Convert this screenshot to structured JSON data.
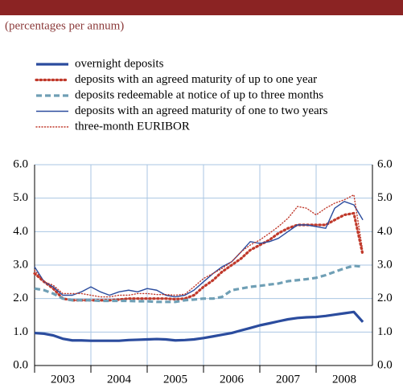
{
  "chart_data": {
    "type": "line",
    "subtitle": "(percentages per annum)",
    "x": [
      2003.0,
      2003.17,
      2003.33,
      2003.5,
      2003.67,
      2003.83,
      2004.0,
      2004.17,
      2004.33,
      2004.5,
      2004.67,
      2004.83,
      2005.0,
      2005.17,
      2005.33,
      2005.5,
      2005.67,
      2005.83,
      2006.0,
      2006.17,
      2006.33,
      2006.5,
      2006.67,
      2006.83,
      2007.0,
      2007.17,
      2007.33,
      2007.5,
      2007.67,
      2007.83,
      2008.0,
      2008.17,
      2008.33,
      2008.5,
      2008.67,
      2008.83
    ],
    "xlim": [
      2003,
      2009
    ],
    "xticks": [
      {
        "value": 2003,
        "label": "2003"
      },
      {
        "value": 2004,
        "label": "2004"
      },
      {
        "value": 2005,
        "label": "2005"
      },
      {
        "value": 2006,
        "label": "2006"
      },
      {
        "value": 2007,
        "label": "2007"
      },
      {
        "value": 2008,
        "label": "2008"
      }
    ],
    "ylim": [
      0,
      6
    ],
    "yticks": [
      {
        "value": 0,
        "label": "0.0"
      },
      {
        "value": 1,
        "label": "1.0"
      },
      {
        "value": 2,
        "label": "2.0"
      },
      {
        "value": 3,
        "label": "3.0"
      },
      {
        "value": 4,
        "label": "4.0"
      },
      {
        "value": 5,
        "label": "5.0"
      },
      {
        "value": 6,
        "label": "6.0"
      }
    ],
    "y2lim": [
      0,
      6
    ],
    "y2ticks": [
      {
        "value": 0,
        "label": "0.0"
      },
      {
        "value": 1,
        "label": "1.0"
      },
      {
        "value": 2,
        "label": "2.0"
      },
      {
        "value": 3,
        "label": "3.0"
      },
      {
        "value": 4,
        "label": "4.0"
      },
      {
        "value": 5,
        "label": "5.0"
      },
      {
        "value": 6,
        "label": "6.0"
      }
    ],
    "grid": true,
    "series": [
      {
        "name": "overnight deposits",
        "color": "#2b4c9e",
        "weight": "thick",
        "dash": "solid",
        "values": [
          0.97,
          0.95,
          0.9,
          0.8,
          0.75,
          0.75,
          0.74,
          0.74,
          0.74,
          0.74,
          0.76,
          0.77,
          0.78,
          0.79,
          0.78,
          0.75,
          0.76,
          0.78,
          0.82,
          0.87,
          0.92,
          0.97,
          1.05,
          1.12,
          1.2,
          1.26,
          1.32,
          1.38,
          1.42,
          1.44,
          1.45,
          1.48,
          1.52,
          1.56,
          1.6,
          1.3
        ]
      },
      {
        "name": "deposits with an agreed maturity of up to one year",
        "color": "#c0392b",
        "weight": "thick",
        "dash": "dotted",
        "values": [
          2.75,
          2.5,
          2.3,
          2.0,
          1.95,
          1.95,
          1.95,
          1.95,
          1.95,
          1.97,
          2.0,
          2.0,
          2.0,
          2.0,
          2.0,
          1.98,
          2.0,
          2.1,
          2.35,
          2.55,
          2.8,
          3.0,
          3.2,
          3.45,
          3.6,
          3.75,
          3.95,
          4.1,
          4.2,
          4.2,
          4.2,
          4.2,
          4.35,
          4.5,
          4.55,
          3.3
        ]
      },
      {
        "name": "deposits redeemable at notice of up to three months",
        "color": "#6f9fb5",
        "weight": "thick",
        "dash": "dashed",
        "values": [
          2.3,
          2.25,
          2.15,
          2.0,
          1.95,
          1.95,
          1.95,
          1.93,
          1.93,
          1.93,
          1.93,
          1.92,
          1.92,
          1.9,
          1.9,
          1.9,
          1.95,
          1.97,
          2.0,
          2.0,
          2.05,
          2.25,
          2.3,
          2.35,
          2.38,
          2.42,
          2.45,
          2.52,
          2.55,
          2.58,
          2.62,
          2.7,
          2.8,
          2.9,
          2.98,
          2.95
        ]
      },
      {
        "name": "deposits with an agreed maturity of one to two years",
        "color": "#2b4c9e",
        "weight": "thin",
        "dash": "solid",
        "values": [
          2.95,
          2.5,
          2.35,
          2.1,
          2.1,
          2.2,
          2.35,
          2.2,
          2.1,
          2.2,
          2.25,
          2.2,
          2.3,
          2.25,
          2.1,
          2.05,
          2.1,
          2.25,
          2.5,
          2.75,
          2.95,
          3.1,
          3.4,
          3.7,
          3.65,
          3.7,
          3.8,
          4.0,
          4.2,
          4.2,
          4.15,
          4.1,
          4.7,
          4.9,
          4.8,
          4.35
        ]
      },
      {
        "name": "three-month EURIBOR",
        "color": "#c0392b",
        "weight": "thin",
        "dash": "dotted",
        "values": [
          2.85,
          2.5,
          2.4,
          2.15,
          2.15,
          2.15,
          2.1,
          2.05,
          2.05,
          2.1,
          2.1,
          2.15,
          2.15,
          2.12,
          2.12,
          2.1,
          2.13,
          2.35,
          2.6,
          2.75,
          2.9,
          3.1,
          3.4,
          3.6,
          3.75,
          3.95,
          4.15,
          4.4,
          4.75,
          4.7,
          4.5,
          4.7,
          4.85,
          4.95,
          5.1,
          3.4
        ]
      }
    ]
  }
}
